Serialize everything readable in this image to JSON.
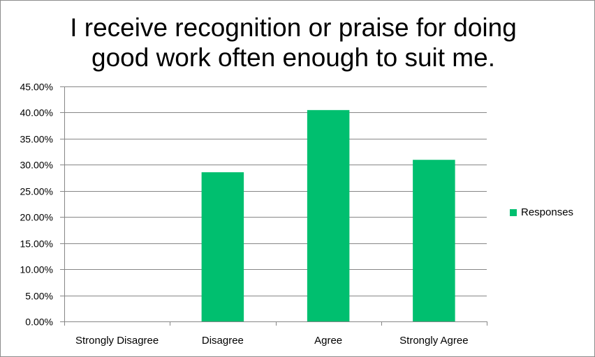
{
  "chart_data": {
    "type": "bar",
    "title": "I receive recognition or praise for doing good work often enough to suit me.",
    "categories": [
      "Strongly Disagree",
      "Disagree",
      "Agree",
      "Strongly Agree"
    ],
    "series": [
      {
        "name": "Responses",
        "values": [
          0.0,
          28.57,
          40.48,
          30.95
        ]
      }
    ],
    "ylim": [
      0,
      45
    ],
    "yticks": [
      0,
      5,
      10,
      15,
      20,
      25,
      30,
      35,
      40,
      45
    ],
    "ytick_labels": [
      "0.00%",
      "5.00%",
      "10.00%",
      "15.00%",
      "20.00%",
      "25.00%",
      "30.00%",
      "35.00%",
      "40.00%",
      "45.00%"
    ],
    "xlabel": "",
    "ylabel": "",
    "grid": true,
    "legend_position": "right",
    "colors": {
      "bar": "#00bf6f",
      "grid": "#868686",
      "axis": "#868686"
    }
  }
}
